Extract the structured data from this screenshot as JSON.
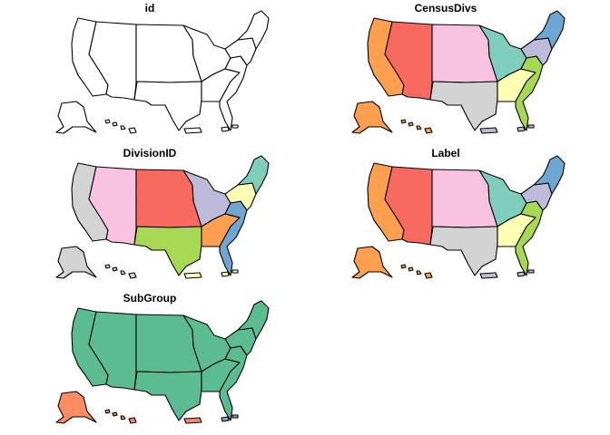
{
  "panels": [
    {
      "title": "id",
      "colors": {
        "pacific": "#ffffff",
        "mountain": "#ffffff",
        "wnc": "#ffffff",
        "wsc": "#ffffff",
        "enc": "#ffffff",
        "esc": "#ffffff",
        "sa": "#ffffff",
        "mid": "#ffffff",
        "ne": "#ffffff",
        "alaska": "#ffffff",
        "hawaii": "#ffffff",
        "pr": "#ffffff",
        "vi": "#ffffff"
      }
    },
    {
      "title": "CensusDivs",
      "colors": {
        "pacific": "#fc9f4f",
        "mountain": "#f86a5f",
        "wnc": "#fac2e1",
        "wsc": "#d3d3d3",
        "enc": "#7fcdbb",
        "esc": "#ffffb3",
        "sa": "#a6d854",
        "mid": "#bebada",
        "ne": "#6fa7d3",
        "alaska": "#fc9f4f",
        "hawaii": "#fc9f4f",
        "pr": "#bebada",
        "vi": "#bebada"
      }
    },
    {
      "title": "DivisionID",
      "colors": {
        "pacific": "#d3d3d3",
        "mountain": "#fac2e1",
        "wnc": "#f86a5f",
        "wsc": "#a6d854",
        "enc": "#bebada",
        "esc": "#fc9f4f",
        "sa": "#6fa7d3",
        "mid": "#ffffb3",
        "ne": "#7fcdbb",
        "alaska": "#d3d3d3",
        "hawaii": "#d3d3d3",
        "pr": "#ffffb3",
        "vi": "#ffffb3"
      }
    },
    {
      "title": "Label",
      "colors": {
        "pacific": "#fc9f4f",
        "mountain": "#f86a5f",
        "wnc": "#fac2e1",
        "wsc": "#d3d3d3",
        "enc": "#7fcdbb",
        "esc": "#ffffb3",
        "sa": "#a6d854",
        "mid": "#bebada",
        "ne": "#6fa7d3",
        "alaska": "#fc9f4f",
        "hawaii": "#fc9f4f",
        "pr": "#bebada",
        "vi": "#bebada"
      }
    },
    {
      "title": "SubGroup",
      "colors": {
        "pacific": "#5bbb91",
        "mountain": "#5bbb91",
        "wnc": "#5bbb91",
        "wsc": "#5bbb91",
        "enc": "#5bbb91",
        "esc": "#5bbb91",
        "sa": "#5bbb91",
        "mid": "#5bbb91",
        "ne": "#5bbb91",
        "alaska": "#fc8d62",
        "hawaii": "#fc8d62",
        "pr": "#fc8d62",
        "vi": "#8da0cb"
      }
    }
  ]
}
